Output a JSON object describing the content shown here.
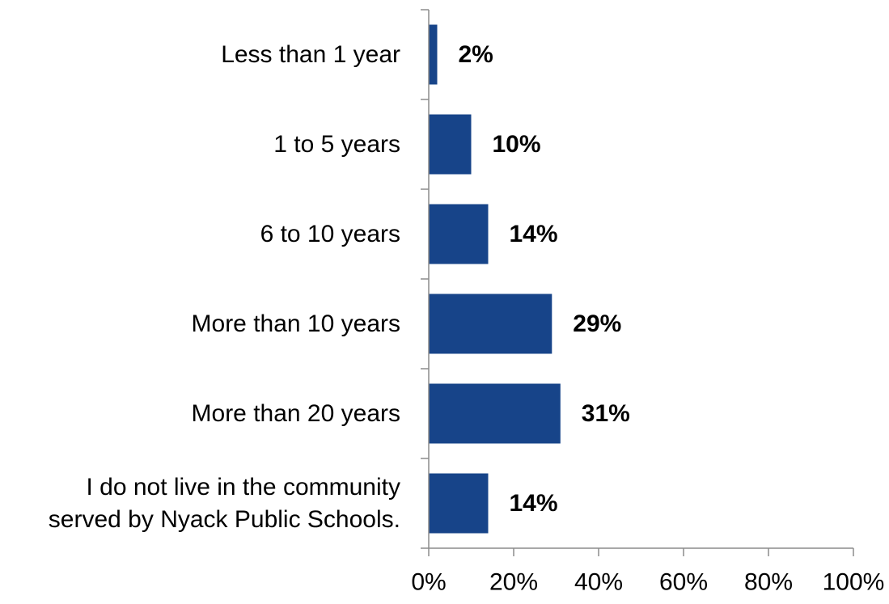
{
  "chart_data": {
    "type": "bar",
    "orientation": "horizontal",
    "categories": [
      "Less than 1 year",
      "1 to 5 years",
      "6 to 10 years",
      "More than 10 years",
      "More than 20 years",
      "I do not live in the community served by Nyack Public Schools."
    ],
    "category_lines": [
      [
        "Less than 1 year"
      ],
      [
        "1 to 5 years"
      ],
      [
        "6 to 10 years"
      ],
      [
        "More than 10 years"
      ],
      [
        "More than 20 years"
      ],
      [
        "I do not live in the community",
        "served by Nyack Public Schools."
      ]
    ],
    "values": [
      2,
      10,
      14,
      29,
      31,
      14
    ],
    "data_labels": [
      "2%",
      "10%",
      "14%",
      "29%",
      "31%",
      "14%"
    ],
    "xlim": [
      0,
      100
    ],
    "x_ticks": [
      0,
      20,
      40,
      60,
      80,
      100
    ],
    "x_tick_labels": [
      "0%",
      "20%",
      "40%",
      "60%",
      "80%",
      "100%"
    ],
    "bar_color": "#174489",
    "axis_color": "#8c8c8c",
    "grid": false,
    "legend": "none",
    "title": "",
    "xlabel": "",
    "ylabel": ""
  }
}
